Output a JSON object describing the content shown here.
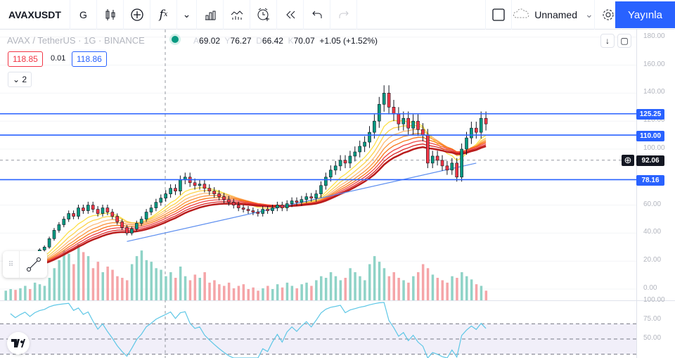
{
  "toolbar": {
    "symbol": "AVAXUSDT",
    "interval": "G",
    "layout_name": "Unnamed",
    "publish": "Yayınla",
    "icons": [
      "candles-icon",
      "add-compare-icon",
      "indicators-icon",
      "templates-icon",
      "replay-compare-icon",
      "alert-icon",
      "replay-icon",
      "undo-icon",
      "redo-icon",
      "select-box-icon",
      "cloud-icon",
      "gear-icon",
      "fullscreen-icon",
      "camera-icon"
    ]
  },
  "legend": {
    "title": "AVAX / TetherUS · 1G · BINANCE",
    "o_label": "A",
    "o": "69.02",
    "h_label": "Y",
    "h": "76.27",
    "l_label": "D",
    "l": "66.42",
    "c_label": "K",
    "c": "70.07",
    "change": "+1.05 (+1.52%)",
    "bid": "118.85",
    "spread": "0.01",
    "ask": "118.86",
    "collapsed_count": "2"
  },
  "price_axis": {
    "ticks": [
      "180.00",
      "160.00",
      "140.00",
      "120.00",
      "100.00",
      "60.00",
      "40.00",
      "20.00",
      "0.00"
    ],
    "tick_values": [
      180,
      160,
      140,
      120,
      100,
      60,
      40,
      20,
      0
    ],
    "levels": [
      {
        "label": "125.25",
        "value": 125.25
      },
      {
        "label": "110.00",
        "value": 110
      },
      {
        "label": "78.16",
        "value": 78.16
      }
    ],
    "crosshair": {
      "label": "92.06",
      "value": 92.06
    }
  },
  "rsi_axis": {
    "ticks": [
      "100.00",
      "75.00",
      "50.00"
    ],
    "tick_values": [
      100,
      75,
      50
    ]
  },
  "colors": {
    "up": "#089981",
    "down": "#f23645",
    "vol_up": "#8fd3c7",
    "vol_down": "#f5a5a8",
    "level": "#2962ff",
    "accent": "#2962ff",
    "rsi": "#5ec7e6"
  },
  "chart_data": {
    "type": "candlestick",
    "closes": [
      15,
      17,
      16,
      19,
      22,
      21,
      25,
      28,
      30,
      36,
      42,
      46,
      50,
      54,
      52,
      58,
      56,
      60,
      57,
      54,
      58,
      55,
      52,
      48,
      44,
      40,
      43,
      47,
      50,
      55,
      58,
      62,
      65,
      68,
      72,
      70,
      78,
      80,
      76,
      74,
      75,
      72,
      70,
      68,
      66,
      64,
      62,
      60,
      58,
      57,
      56,
      55,
      54,
      57,
      56,
      58,
      60,
      58,
      61,
      63,
      62,
      64,
      66,
      65,
      68,
      74,
      80,
      85,
      88,
      92,
      90,
      95,
      98,
      102,
      105,
      112,
      120,
      132,
      140,
      130,
      125,
      118,
      122,
      115,
      120,
      114,
      110,
      90,
      95,
      92,
      88,
      85,
      90,
      80,
      100,
      108,
      115,
      112,
      122,
      118
    ],
    "volumes": [
      12,
      14,
      13,
      15,
      18,
      14,
      22,
      20,
      18,
      28,
      40,
      50,
      62,
      58,
      45,
      70,
      60,
      55,
      40,
      48,
      35,
      42,
      38,
      30,
      28,
      25,
      45,
      55,
      62,
      50,
      48,
      40,
      38,
      30,
      35,
      28,
      42,
      30,
      25,
      32,
      28,
      35,
      22,
      25,
      20,
      18,
      22,
      15,
      18,
      20,
      14,
      16,
      12,
      15,
      18,
      14,
      20,
      16,
      22,
      18,
      15,
      20,
      22,
      18,
      25,
      30,
      28,
      35,
      30,
      25,
      28,
      40,
      35,
      30,
      25,
      45,
      55,
      48,
      40,
      30,
      35,
      28,
      25,
      22,
      30,
      35,
      45,
      40,
      32,
      28,
      25,
      22,
      30,
      28,
      35,
      30,
      26,
      20,
      18,
      12
    ],
    "trendline": {
      "from_index": 25,
      "from": 34,
      "to_index": 97,
      "to": 90
    },
    "ema_periods": [
      8,
      11,
      14,
      17,
      20,
      23,
      26,
      29
    ]
  }
}
